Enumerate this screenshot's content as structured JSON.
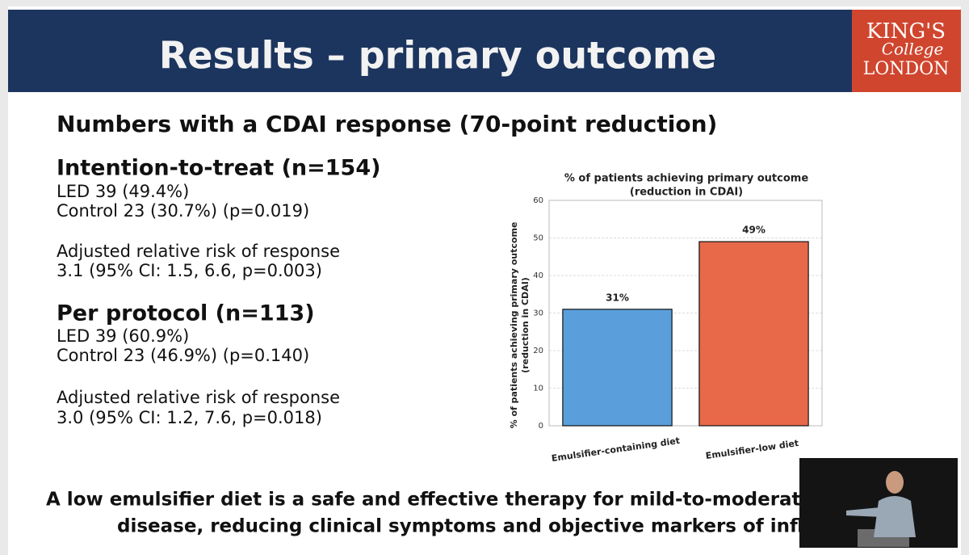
{
  "header": {
    "title": "Results – primary outcome",
    "logo": [
      "KING'S",
      "College",
      "LONDON"
    ]
  },
  "heading": "Numbers with a CDAI response (70-point reduction)",
  "sections": [
    {
      "title": "Intention-to-treat (n=154)",
      "lines": [
        "LED 39 (49.4%)",
        "Control 23 (30.7%) (p=0.019)",
        "Adjusted relative risk of response",
        "3.1 (95% CI: 1.5, 6.6, p=0.003)"
      ]
    },
    {
      "title": "Per protocol (n=113)",
      "lines": [
        "LED 39 (60.9%)",
        "Control 23 (46.9%) (p=0.140)",
        "Adjusted relative risk of response",
        "3.0 (95% CI: 1.2, 7.6, p=0.018)"
      ]
    }
  ],
  "conclusion": [
    "A low emulsifier diet is a safe and effective therapy for mild-to-moderately a",
    "disease, reducing clinical symptoms and objective markers of inflamm"
  ],
  "chart_data": {
    "type": "bar",
    "title": [
      "% of patients achieving primary outcome",
      "(reduction in CDAI)"
    ],
    "ylabel": [
      "% of patients achieving primary outcome",
      "(reduction in CDAI)"
    ],
    "categories": [
      "Emulsifier-containing diet",
      "Emulsifier-low diet"
    ],
    "values": [
      31,
      49
    ],
    "value_labels": [
      "31%",
      "49%"
    ],
    "colors": [
      "#5a9fdb",
      "#e8694a"
    ],
    "ylim": [
      0,
      60
    ],
    "yticks": [
      0,
      10,
      20,
      30,
      40,
      50,
      60
    ],
    "grid": true
  }
}
